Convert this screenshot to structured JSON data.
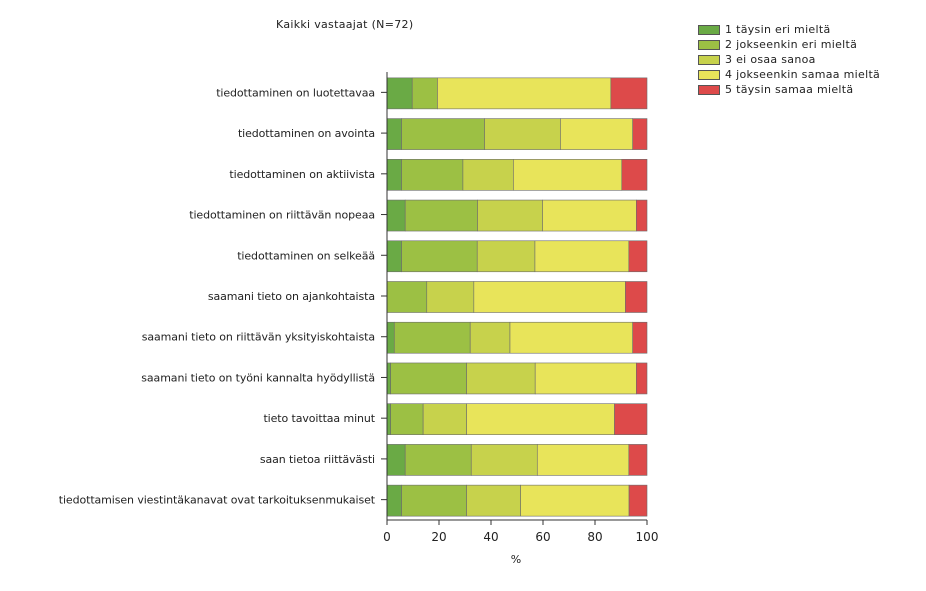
{
  "chart_data": {
    "type": "bar",
    "orientation": "horizontal",
    "stacked": true,
    "title": "Kaikki vastaajat (N=72)",
    "xlabel": "%",
    "ylabel": "",
    "xlim": [
      0,
      100
    ],
    "xticks": [
      "0",
      "20",
      "40",
      "60",
      "80",
      "100"
    ],
    "legend_position": "top-right",
    "grid": false,
    "categories": [
      "tiedottaminen on luotettavaa",
      "tiedottaminen on avointa",
      "tiedottaminen on aktiivista",
      "tiedottaminen on riittävän nopeaa",
      "tiedottaminen on selkeää",
      "saamani tieto on ajankohtaista",
      "saamani tieto on riittävän yksityiskohtaista",
      "saamani tieto on työni kannalta hyödyllistä",
      "tieto tavoittaa minut",
      "saan tietoa riittävästi",
      "tiedottamisen viestintäkanavat ovat tarkoituksenmukaiset"
    ],
    "series": [
      {
        "name": "1 täysin eri mieltä",
        "color": "#6aaa45",
        "values": [
          9.7,
          5.6,
          5.6,
          7.0,
          5.6,
          0.0,
          2.8,
          1.4,
          1.4,
          7.0,
          5.6
        ]
      },
      {
        "name": "2 jokseenkin eri mieltä",
        "color": "#9cc044",
        "values": [
          9.7,
          31.9,
          23.6,
          27.8,
          29.1,
          15.3,
          29.2,
          29.2,
          12.5,
          25.4,
          25.0
        ]
      },
      {
        "name": "3 ei osaa sanoa",
        "color": "#c7d24c",
        "values": [
          0.0,
          29.2,
          19.4,
          25.0,
          22.2,
          18.1,
          15.3,
          26.4,
          16.7,
          25.4,
          20.8
        ]
      },
      {
        "name": "4 jokseenkin samaa mieltä",
        "color": "#e8e45a",
        "values": [
          66.7,
          27.8,
          41.7,
          36.1,
          36.1,
          58.3,
          47.2,
          38.9,
          56.9,
          35.2,
          41.7
        ]
      },
      {
        "name": "5 täysin samaa mieltä",
        "color": "#dd4a4a",
        "values": [
          13.9,
          5.5,
          9.7,
          4.1,
          7.0,
          8.3,
          5.5,
          4.1,
          12.5,
          7.0,
          6.9
        ]
      }
    ]
  }
}
